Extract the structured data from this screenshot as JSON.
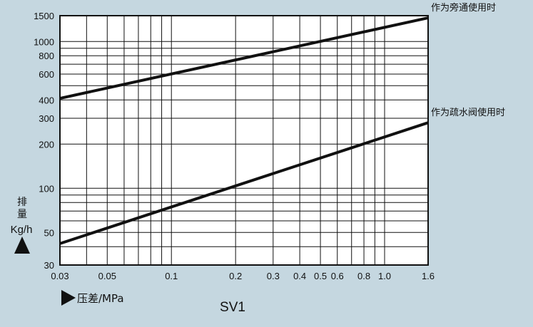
{
  "chart_data": {
    "type": "line",
    "title": "SV1",
    "x_scale": "log",
    "y_scale": "log",
    "xlim": [
      0.03,
      1.6
    ],
    "ylim": [
      30,
      1500
    ],
    "grid": true,
    "xlabel": "压差/MPa",
    "ylabel_lines": [
      "排",
      "量",
      "Kg/h"
    ],
    "x_ticks": [
      {
        "v": 0.03,
        "label": "0.03"
      },
      {
        "v": 0.04,
        "label": ""
      },
      {
        "v": 0.05,
        "label": "0.05"
      },
      {
        "v": 0.06,
        "label": ""
      },
      {
        "v": 0.07,
        "label": ""
      },
      {
        "v": 0.08,
        "label": ""
      },
      {
        "v": 0.09,
        "label": ""
      },
      {
        "v": 0.1,
        "label": "0.1"
      },
      {
        "v": 0.2,
        "label": "0.2"
      },
      {
        "v": 0.3,
        "label": "0.3"
      },
      {
        "v": 0.4,
        "label": "0.4"
      },
      {
        "v": 0.5,
        "label": "0.5"
      },
      {
        "v": 0.6,
        "label": "0.6"
      },
      {
        "v": 0.7,
        "label": ""
      },
      {
        "v": 0.8,
        "label": "0.8"
      },
      {
        "v": 0.9,
        "label": ""
      },
      {
        "v": 1.0,
        "label": "1.0"
      },
      {
        "v": 1.6,
        "label": "1.6"
      }
    ],
    "y_ticks": [
      {
        "v": 30,
        "label": "30"
      },
      {
        "v": 40,
        "label": ""
      },
      {
        "v": 50,
        "label": "50"
      },
      {
        "v": 60,
        "label": ""
      },
      {
        "v": 70,
        "label": ""
      },
      {
        "v": 80,
        "label": ""
      },
      {
        "v": 90,
        "label": ""
      },
      {
        "v": 100,
        "label": "100"
      },
      {
        "v": 200,
        "label": "200"
      },
      {
        "v": 300,
        "label": "300"
      },
      {
        "v": 400,
        "label": "400"
      },
      {
        "v": 500,
        "label": ""
      },
      {
        "v": 600,
        "label": "600"
      },
      {
        "v": 700,
        "label": ""
      },
      {
        "v": 800,
        "label": "800"
      },
      {
        "v": 900,
        "label": ""
      },
      {
        "v": 1000,
        "label": "1000"
      },
      {
        "v": 1500,
        "label": "1500"
      }
    ],
    "series": [
      {
        "name": "作为旁通使用时",
        "x": [
          0.03,
          1.6
        ],
        "y": [
          410,
          1450
        ]
      },
      {
        "name": "作为疏水阀使用时",
        "x": [
          0.03,
          1.6
        ],
        "y": [
          42,
          280
        ]
      }
    ]
  },
  "colors": {
    "background": "#c5d7e0",
    "plot": "#ffffff",
    "line": "#111111"
  }
}
